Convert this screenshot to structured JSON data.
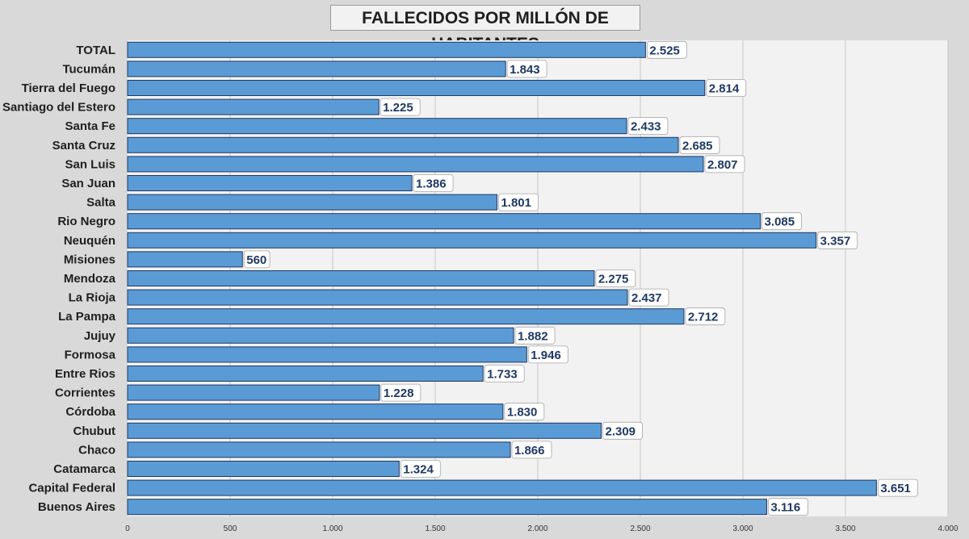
{
  "chart_data": {
    "type": "bar",
    "orientation": "horizontal",
    "title": "FALLECIDOS POR MILLÓN DE HABITANTES",
    "categories": [
      "TOTAL",
      "Tucumán",
      "Tierra del Fuego",
      "Santiago del Estero",
      "Santa Fe",
      "Santa Cruz",
      "San Luis",
      "San Juan",
      "Salta",
      "Rio Negro",
      "Neuquén",
      "Misiones",
      "Mendoza",
      "La Rioja",
      "La Pampa",
      "Jujuy",
      "Formosa",
      "Entre Rios",
      "Corrientes",
      "Córdoba",
      "Chubut",
      "Chaco",
      "Catamarca",
      "Capital Federal",
      "Buenos Aires"
    ],
    "values": [
      2525,
      1843,
      2814,
      1225,
      2433,
      2685,
      2807,
      1386,
      1801,
      3085,
      3357,
      560,
      2275,
      2437,
      2712,
      1882,
      1946,
      1733,
      1228,
      1830,
      2309,
      1866,
      1324,
      3651,
      3116
    ],
    "value_labels": [
      "2.525",
      "1.843",
      "2.814",
      "1.225",
      "2.433",
      "2.685",
      "2.807",
      "1.386",
      "1.801",
      "3.085",
      "3.357",
      "560",
      "2.275",
      "2.437",
      "2.712",
      "1.882",
      "1.946",
      "1.733",
      "1.228",
      "1.830",
      "2.309",
      "1.866",
      "1.324",
      "3.651",
      "3.116"
    ],
    "xlim": [
      0,
      4000
    ],
    "xticks": [
      0,
      500,
      1000,
      1500,
      2000,
      2500,
      3000,
      3500,
      4000
    ],
    "xtick_labels": [
      "0",
      "500",
      "1.000",
      "1.500",
      "2.000",
      "2.500",
      "3.000",
      "3.500",
      "4.000"
    ],
    "grid": true,
    "legend": "none",
    "colors": {
      "bar": "#5b9bd5",
      "bar_edge": "#1f3864",
      "label_text": "#1f3864",
      "plot_bg": "#f2f2f2",
      "page_bg": "#d9d9d9"
    }
  }
}
